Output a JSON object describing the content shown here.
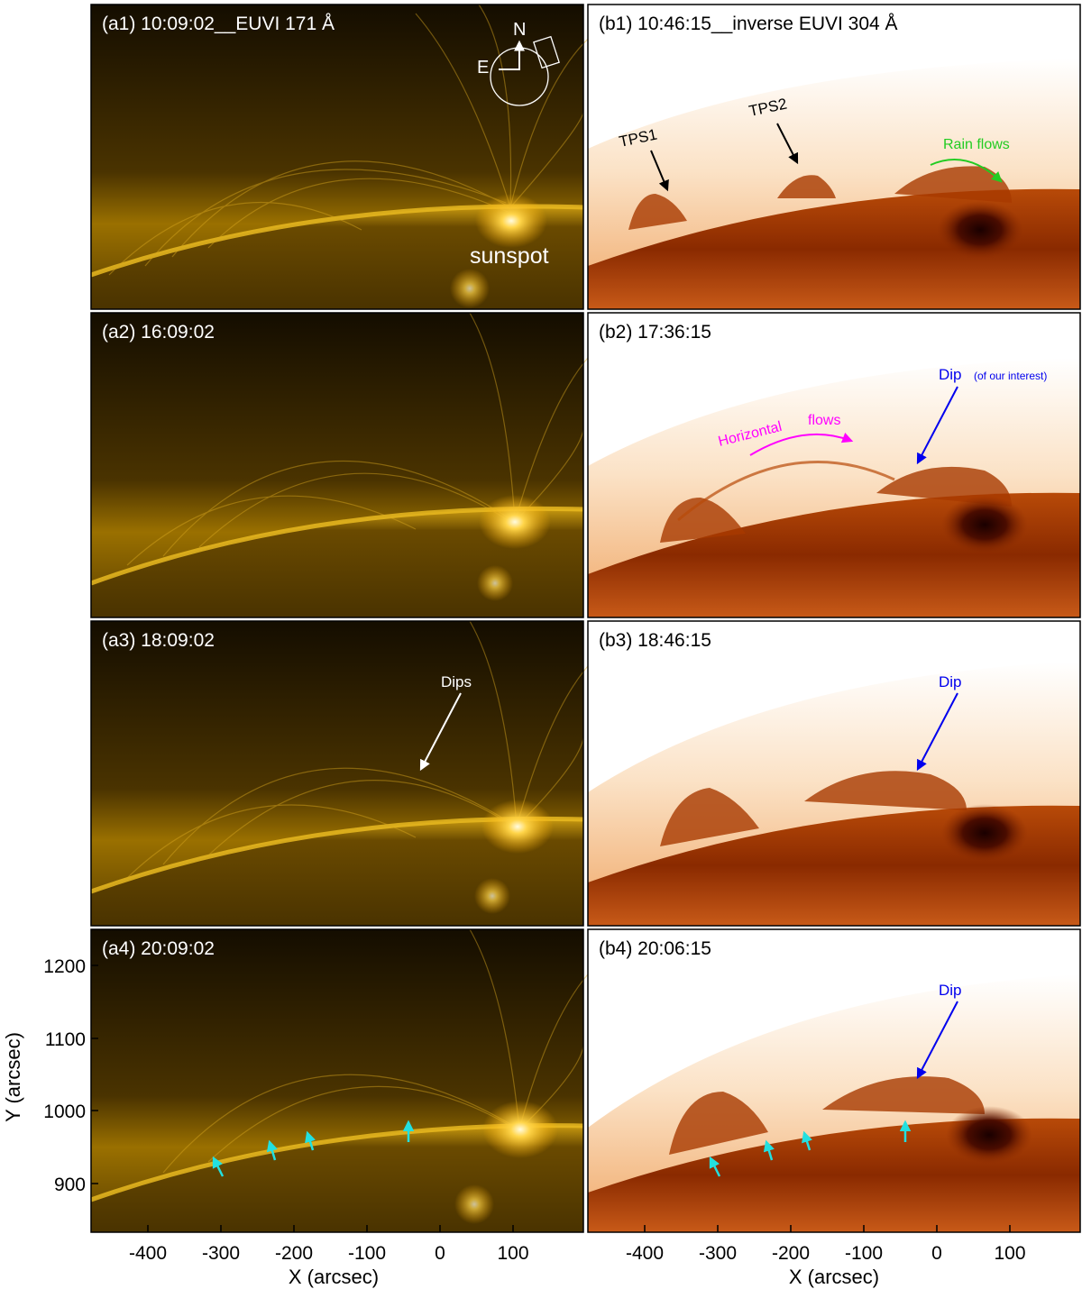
{
  "figure": {
    "colors": {
      "euvi171_dark": "#120c00",
      "euvi171_mid": "#6a4a00",
      "euvi171_bright": "#ffd24a",
      "euvi304_bg": "#ffffff",
      "euvi304_corona": "#f6c89a",
      "euvi304_disk": "#a33c00",
      "euvi304_dark": "#3a0a00",
      "label_green": "#22cc22",
      "label_magenta": "#ff00ff",
      "label_blue": "#0000ee",
      "arrow_cyan": "#22e0e0"
    },
    "panels_a": [
      {
        "label": "(a1)  10:09:02__EUVI 171 Å",
        "sunspot_label": "sunspot",
        "compass_n": "N",
        "compass_e": "E"
      },
      {
        "label": "(a2)  16:09:02"
      },
      {
        "label": "(a3)  18:09:02",
        "annotation": "Dips"
      },
      {
        "label": "(a4)  20:09:02"
      }
    ],
    "panels_b": [
      {
        "label": "(b1)  10:46:15__inverse EUVI 304 Å",
        "tps1": "TPS1",
        "tps2": "TPS2",
        "rain": "Rain flows"
      },
      {
        "label": "(b2)  17:36:15",
        "horizontal": "Horizontal",
        "flows": "flows",
        "dip": "Dip",
        "dip_note": "(of our interest)"
      },
      {
        "label": "(b3)  18:46:15",
        "dip": "Dip"
      },
      {
        "label": "(b4)  20:06:15",
        "dip": "Dip"
      }
    ],
    "x_axis": {
      "label": "X (arcsec)",
      "ticks_a": [
        "-400",
        "-300",
        "-200",
        "-100",
        "0",
        "100"
      ],
      "ticks_b": [
        "-400",
        "-300",
        "-200",
        "-100",
        "0",
        "100"
      ]
    },
    "y_axis": {
      "label": "Y (arcsec)",
      "ticks": [
        "1200",
        "1100",
        "1000",
        "900"
      ]
    }
  }
}
